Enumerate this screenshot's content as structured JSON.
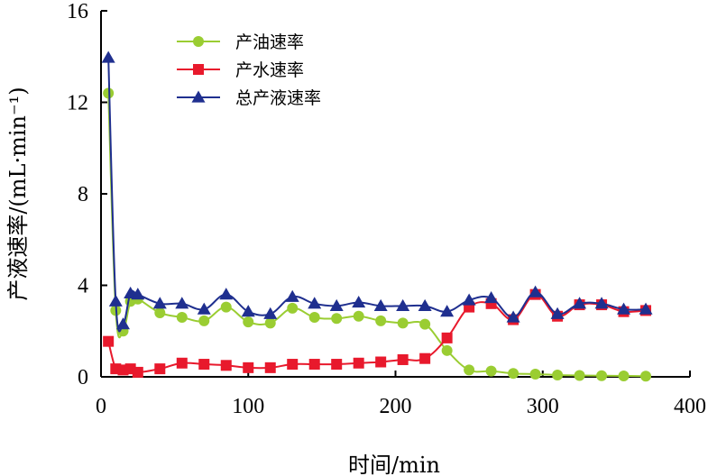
{
  "chart_data": {
    "type": "line",
    "title": "",
    "xlabel": "时间/min",
    "ylabel": "产液速率/(mL·min⁻¹)",
    "xlim": [
      0,
      400
    ],
    "ylim": [
      0,
      16
    ],
    "x_ticks": [
      0,
      100,
      200,
      300,
      400
    ],
    "y_ticks": [
      0,
      4,
      8,
      12,
      16
    ],
    "grid": false,
    "legend_position": "top-center",
    "series": [
      {
        "name": "产油速率",
        "color": "#9acd32",
        "marker": "circle",
        "points": [
          [
            5,
            12.4
          ],
          [
            10,
            2.9
          ],
          [
            15,
            2.0
          ],
          [
            20,
            3.3
          ],
          [
            25,
            3.4
          ],
          [
            40,
            2.8
          ],
          [
            55,
            2.6
          ],
          [
            70,
            2.45
          ],
          [
            85,
            3.05
          ],
          [
            100,
            2.4
          ],
          [
            115,
            2.35
          ],
          [
            130,
            3.0
          ],
          [
            145,
            2.6
          ],
          [
            160,
            2.55
          ],
          [
            175,
            2.65
          ],
          [
            190,
            2.45
          ],
          [
            205,
            2.35
          ],
          [
            220,
            2.3
          ],
          [
            235,
            1.15
          ],
          [
            250,
            0.3
          ],
          [
            265,
            0.25
          ],
          [
            280,
            0.15
          ],
          [
            295,
            0.12
          ],
          [
            310,
            0.08
          ],
          [
            325,
            0.06
          ],
          [
            340,
            0.05
          ],
          [
            355,
            0.04
          ],
          [
            370,
            0.03
          ]
        ]
      },
      {
        "name": "产水速率",
        "color": "#e8192c",
        "marker": "square",
        "points": [
          [
            5,
            1.55
          ],
          [
            10,
            0.35
          ],
          [
            15,
            0.3
          ],
          [
            20,
            0.35
          ],
          [
            25,
            0.2
          ],
          [
            40,
            0.35
          ],
          [
            55,
            0.6
          ],
          [
            70,
            0.55
          ],
          [
            85,
            0.5
          ],
          [
            100,
            0.4
          ],
          [
            115,
            0.4
          ],
          [
            130,
            0.55
          ],
          [
            145,
            0.55
          ],
          [
            160,
            0.55
          ],
          [
            175,
            0.6
          ],
          [
            190,
            0.65
          ],
          [
            205,
            0.75
          ],
          [
            220,
            0.8
          ],
          [
            235,
            1.7
          ],
          [
            250,
            3.05
          ],
          [
            265,
            3.2
          ],
          [
            280,
            2.5
          ],
          [
            295,
            3.6
          ],
          [
            310,
            2.65
          ],
          [
            325,
            3.15
          ],
          [
            340,
            3.15
          ],
          [
            355,
            2.85
          ],
          [
            370,
            2.9
          ]
        ]
      },
      {
        "name": "总产液速率",
        "color": "#1f2f8f",
        "marker": "triangle",
        "points": [
          [
            5,
            13.95
          ],
          [
            10,
            3.3
          ],
          [
            15,
            2.3
          ],
          [
            20,
            3.65
          ],
          [
            25,
            3.6
          ],
          [
            40,
            3.2
          ],
          [
            55,
            3.2
          ],
          [
            70,
            2.95
          ],
          [
            85,
            3.6
          ],
          [
            100,
            2.85
          ],
          [
            115,
            2.75
          ],
          [
            130,
            3.5
          ],
          [
            145,
            3.2
          ],
          [
            160,
            3.1
          ],
          [
            175,
            3.25
          ],
          [
            190,
            3.1
          ],
          [
            205,
            3.1
          ],
          [
            220,
            3.1
          ],
          [
            235,
            2.85
          ],
          [
            250,
            3.35
          ],
          [
            265,
            3.45
          ],
          [
            280,
            2.6
          ],
          [
            295,
            3.7
          ],
          [
            310,
            2.75
          ],
          [
            325,
            3.2
          ],
          [
            340,
            3.2
          ],
          [
            355,
            2.95
          ],
          [
            370,
            2.95
          ]
        ]
      }
    ]
  }
}
